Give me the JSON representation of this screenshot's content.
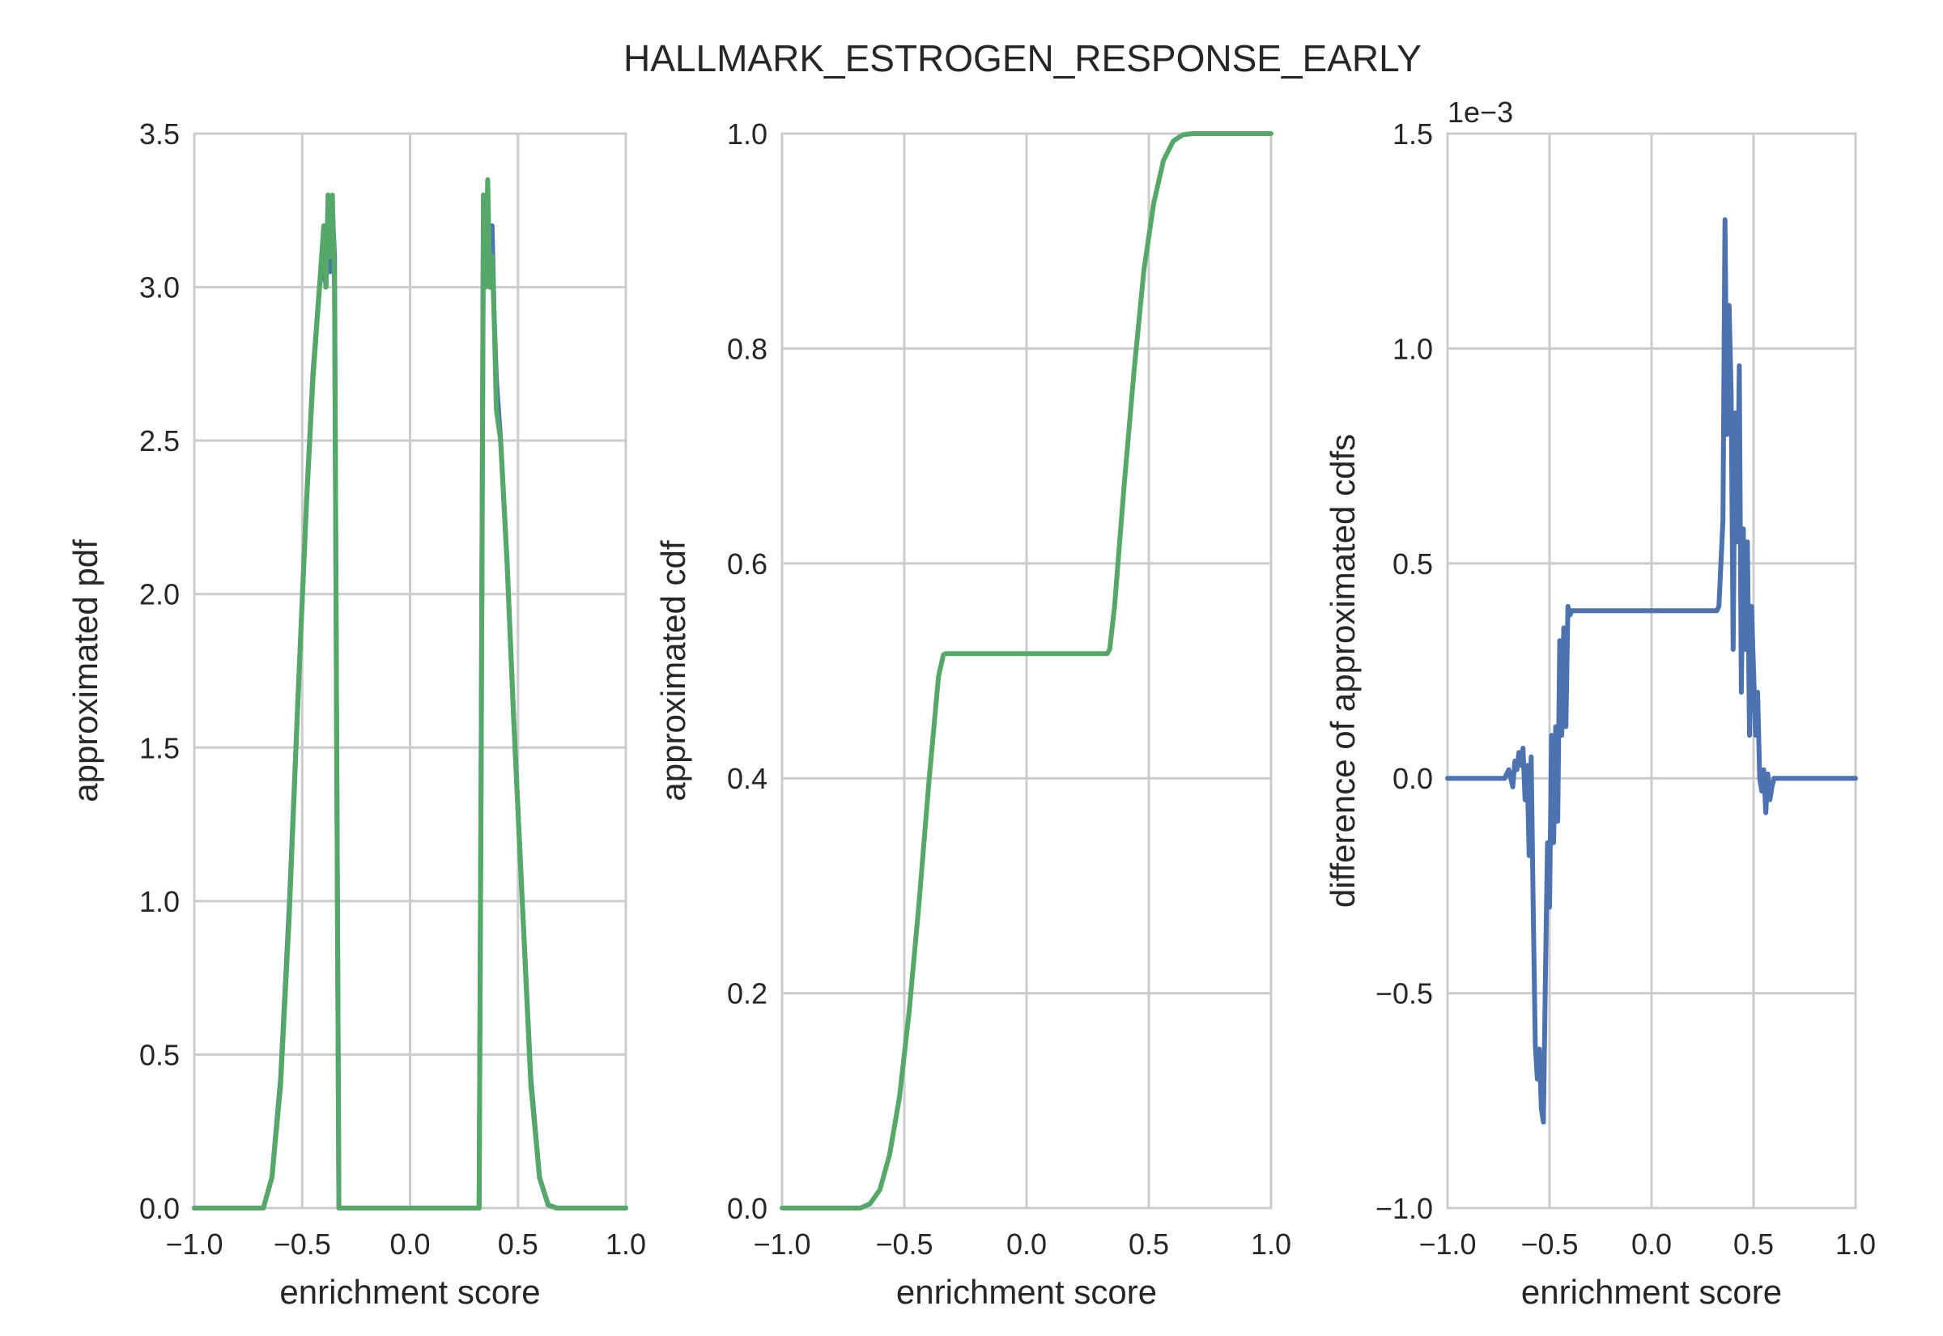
{
  "chart_data": {
    "title": "HALLMARK_ESTROGEN_RESPONSE_EARLY",
    "colors": {
      "blue": "#4c72b0",
      "green": "#55a868",
      "grid": "#cccccc"
    },
    "panels": [
      {
        "type": "line",
        "xlabel": "enrichment score",
        "ylabel": "approximated pdf",
        "xlim": [
          -1.0,
          1.0
        ],
        "ylim": [
          0.0,
          3.5
        ],
        "xticks": [
          "−1.0",
          "−0.5",
          "0.0",
          "0.5",
          "1.0"
        ],
        "yticks": [
          "0.0",
          "0.5",
          "1.0",
          "1.5",
          "2.0",
          "2.5",
          "3.0",
          "3.5"
        ],
        "grid": true,
        "series": [
          {
            "color": "#4c72b0",
            "x": [
              -1.0,
              -0.68,
              -0.64,
              -0.6,
              -0.56,
              -0.52,
              -0.48,
              -0.45,
              -0.42,
              -0.4,
              -0.39,
              -0.38,
              -0.37,
              -0.36,
              -0.35,
              -0.34,
              -0.33,
              -0.32,
              -0.3,
              0.3,
              0.32,
              0.33,
              0.34,
              0.35,
              0.36,
              0.37,
              0.38,
              0.39,
              0.4,
              0.42,
              0.45,
              0.48,
              0.52,
              0.56,
              0.6,
              0.64,
              0.68,
              1.0
            ],
            "y": [
              0,
              0,
              0.1,
              0.42,
              0.98,
              1.65,
              2.3,
              2.72,
              3.0,
              3.1,
              3.0,
              3.2,
              3.05,
              3.25,
              3.1,
              1.5,
              0,
              0,
              0,
              0,
              0,
              1.5,
              3.2,
              3.05,
              3.22,
              3.0,
              3.2,
              2.9,
              2.7,
              2.5,
              2.1,
              1.6,
              1.0,
              0.42,
              0.1,
              0.01,
              0,
              0
            ]
          },
          {
            "color": "#55a868",
            "x": [
              -1.0,
              -0.68,
              -0.64,
              -0.6,
              -0.56,
              -0.52,
              -0.48,
              -0.45,
              -0.42,
              -0.4,
              -0.39,
              -0.38,
              -0.37,
              -0.36,
              -0.35,
              -0.34,
              -0.33,
              -0.32,
              -0.3,
              0.3,
              0.32,
              0.33,
              0.34,
              0.35,
              0.36,
              0.37,
              0.38,
              0.39,
              0.4,
              0.42,
              0.45,
              0.48,
              0.52,
              0.56,
              0.6,
              0.64,
              0.68,
              1.0
            ],
            "y": [
              0,
              0,
              0.1,
              0.4,
              0.95,
              1.65,
              2.3,
              2.7,
              3.0,
              3.2,
              3.0,
              3.3,
              3.1,
              3.3,
              3.0,
              1.5,
              0,
              0,
              0,
              0,
              0,
              1.5,
              3.3,
              3.0,
              3.35,
              3.0,
              3.1,
              2.9,
              2.6,
              2.5,
              2.1,
              1.6,
              1.0,
              0.4,
              0.1,
              0.01,
              0,
              0
            ]
          }
        ]
      },
      {
        "type": "line",
        "xlabel": "enrichment score",
        "ylabel": "approximated cdf",
        "xlim": [
          -1.0,
          1.0
        ],
        "ylim": [
          0.0,
          1.0
        ],
        "xticks": [
          "−1.0",
          "−0.5",
          "0.0",
          "0.5",
          "1.0"
        ],
        "yticks": [
          "0.0",
          "0.2",
          "0.4",
          "0.6",
          "0.8",
          "1.0"
        ],
        "grid": true,
        "series": [
          {
            "color": "#55a868",
            "x": [
              -1.0,
              -0.68,
              -0.64,
              -0.6,
              -0.56,
              -0.52,
              -0.48,
              -0.44,
              -0.4,
              -0.36,
              -0.34,
              -0.33,
              0.33,
              0.34,
              0.36,
              0.4,
              0.44,
              0.48,
              0.52,
              0.56,
              0.6,
              0.64,
              0.68,
              1.0
            ],
            "y": [
              0,
              0,
              0.004,
              0.017,
              0.05,
              0.103,
              0.183,
              0.283,
              0.395,
              0.495,
              0.515,
              0.516,
              0.516,
              0.52,
              0.56,
              0.675,
              0.78,
              0.873,
              0.935,
              0.975,
              0.993,
              0.999,
              1.0,
              1.0
            ]
          }
        ]
      },
      {
        "type": "line",
        "xlabel": "enrichment score",
        "ylabel": "difference of approximated cdfs",
        "scale_label": "1e−3",
        "xlim": [
          -1.0,
          1.0
        ],
        "ylim": [
          -1.0,
          1.5
        ],
        "xticks": [
          "−1.0",
          "−0.5",
          "0.0",
          "0.5",
          "1.0"
        ],
        "yticks": [
          "−1.0",
          "−0.5",
          "0.0",
          "0.5",
          "1.0",
          "1.5"
        ],
        "grid": true,
        "series": [
          {
            "color": "#4c72b0",
            "x": [
              -1.0,
              -0.72,
              -0.7,
              -0.68,
              -0.67,
              -0.66,
              -0.65,
              -0.64,
              -0.63,
              -0.62,
              -0.61,
              -0.6,
              -0.59,
              -0.58,
              -0.57,
              -0.56,
              -0.55,
              -0.54,
              -0.53,
              -0.52,
              -0.51,
              -0.5,
              -0.49,
              -0.48,
              -0.47,
              -0.46,
              -0.45,
              -0.44,
              -0.43,
              -0.42,
              -0.41,
              -0.4,
              -0.39,
              -0.38,
              -0.37,
              -0.36,
              -0.35,
              -0.34,
              -0.33,
              -0.32,
              -0.3,
              0.3,
              0.32,
              0.33,
              0.34,
              0.35,
              0.36,
              0.37,
              0.38,
              0.39,
              0.4,
              0.41,
              0.42,
              0.43,
              0.44,
              0.45,
              0.46,
              0.47,
              0.48,
              0.49,
              0.5,
              0.51,
              0.52,
              0.53,
              0.54,
              0.55,
              0.56,
              0.57,
              0.58,
              0.59,
              0.6,
              0.62,
              0.64,
              0.66,
              0.7,
              1.0
            ],
            "y": [
              0,
              0,
              0.02,
              -0.02,
              0.04,
              0.02,
              0.06,
              0.03,
              0.07,
              -0.05,
              0.03,
              -0.18,
              0.05,
              -0.3,
              -0.62,
              -0.7,
              -0.63,
              -0.77,
              -0.8,
              -0.45,
              -0.15,
              -0.3,
              0.1,
              -0.15,
              0.12,
              -0.1,
              0.32,
              0.1,
              0.35,
              0.12,
              0.4,
              0.38,
              0.39,
              0.39,
              0.39,
              0.39,
              0.39,
              0.39,
              0.39,
              0.39,
              0.39,
              0.39,
              0.39,
              0.4,
              0.5,
              0.6,
              1.3,
              0.8,
              1.1,
              0.9,
              0.3,
              0.85,
              0.55,
              0.96,
              0.2,
              0.58,
              0.3,
              0.55,
              0.1,
              0.4,
              0.25,
              0.1,
              0.2,
              0.0,
              -0.03,
              0.02,
              -0.08,
              0.01,
              -0.05,
              -0.02,
              0.0,
              0.0,
              0.0,
              0.0,
              0.0,
              0.0
            ]
          }
        ]
      }
    ]
  }
}
